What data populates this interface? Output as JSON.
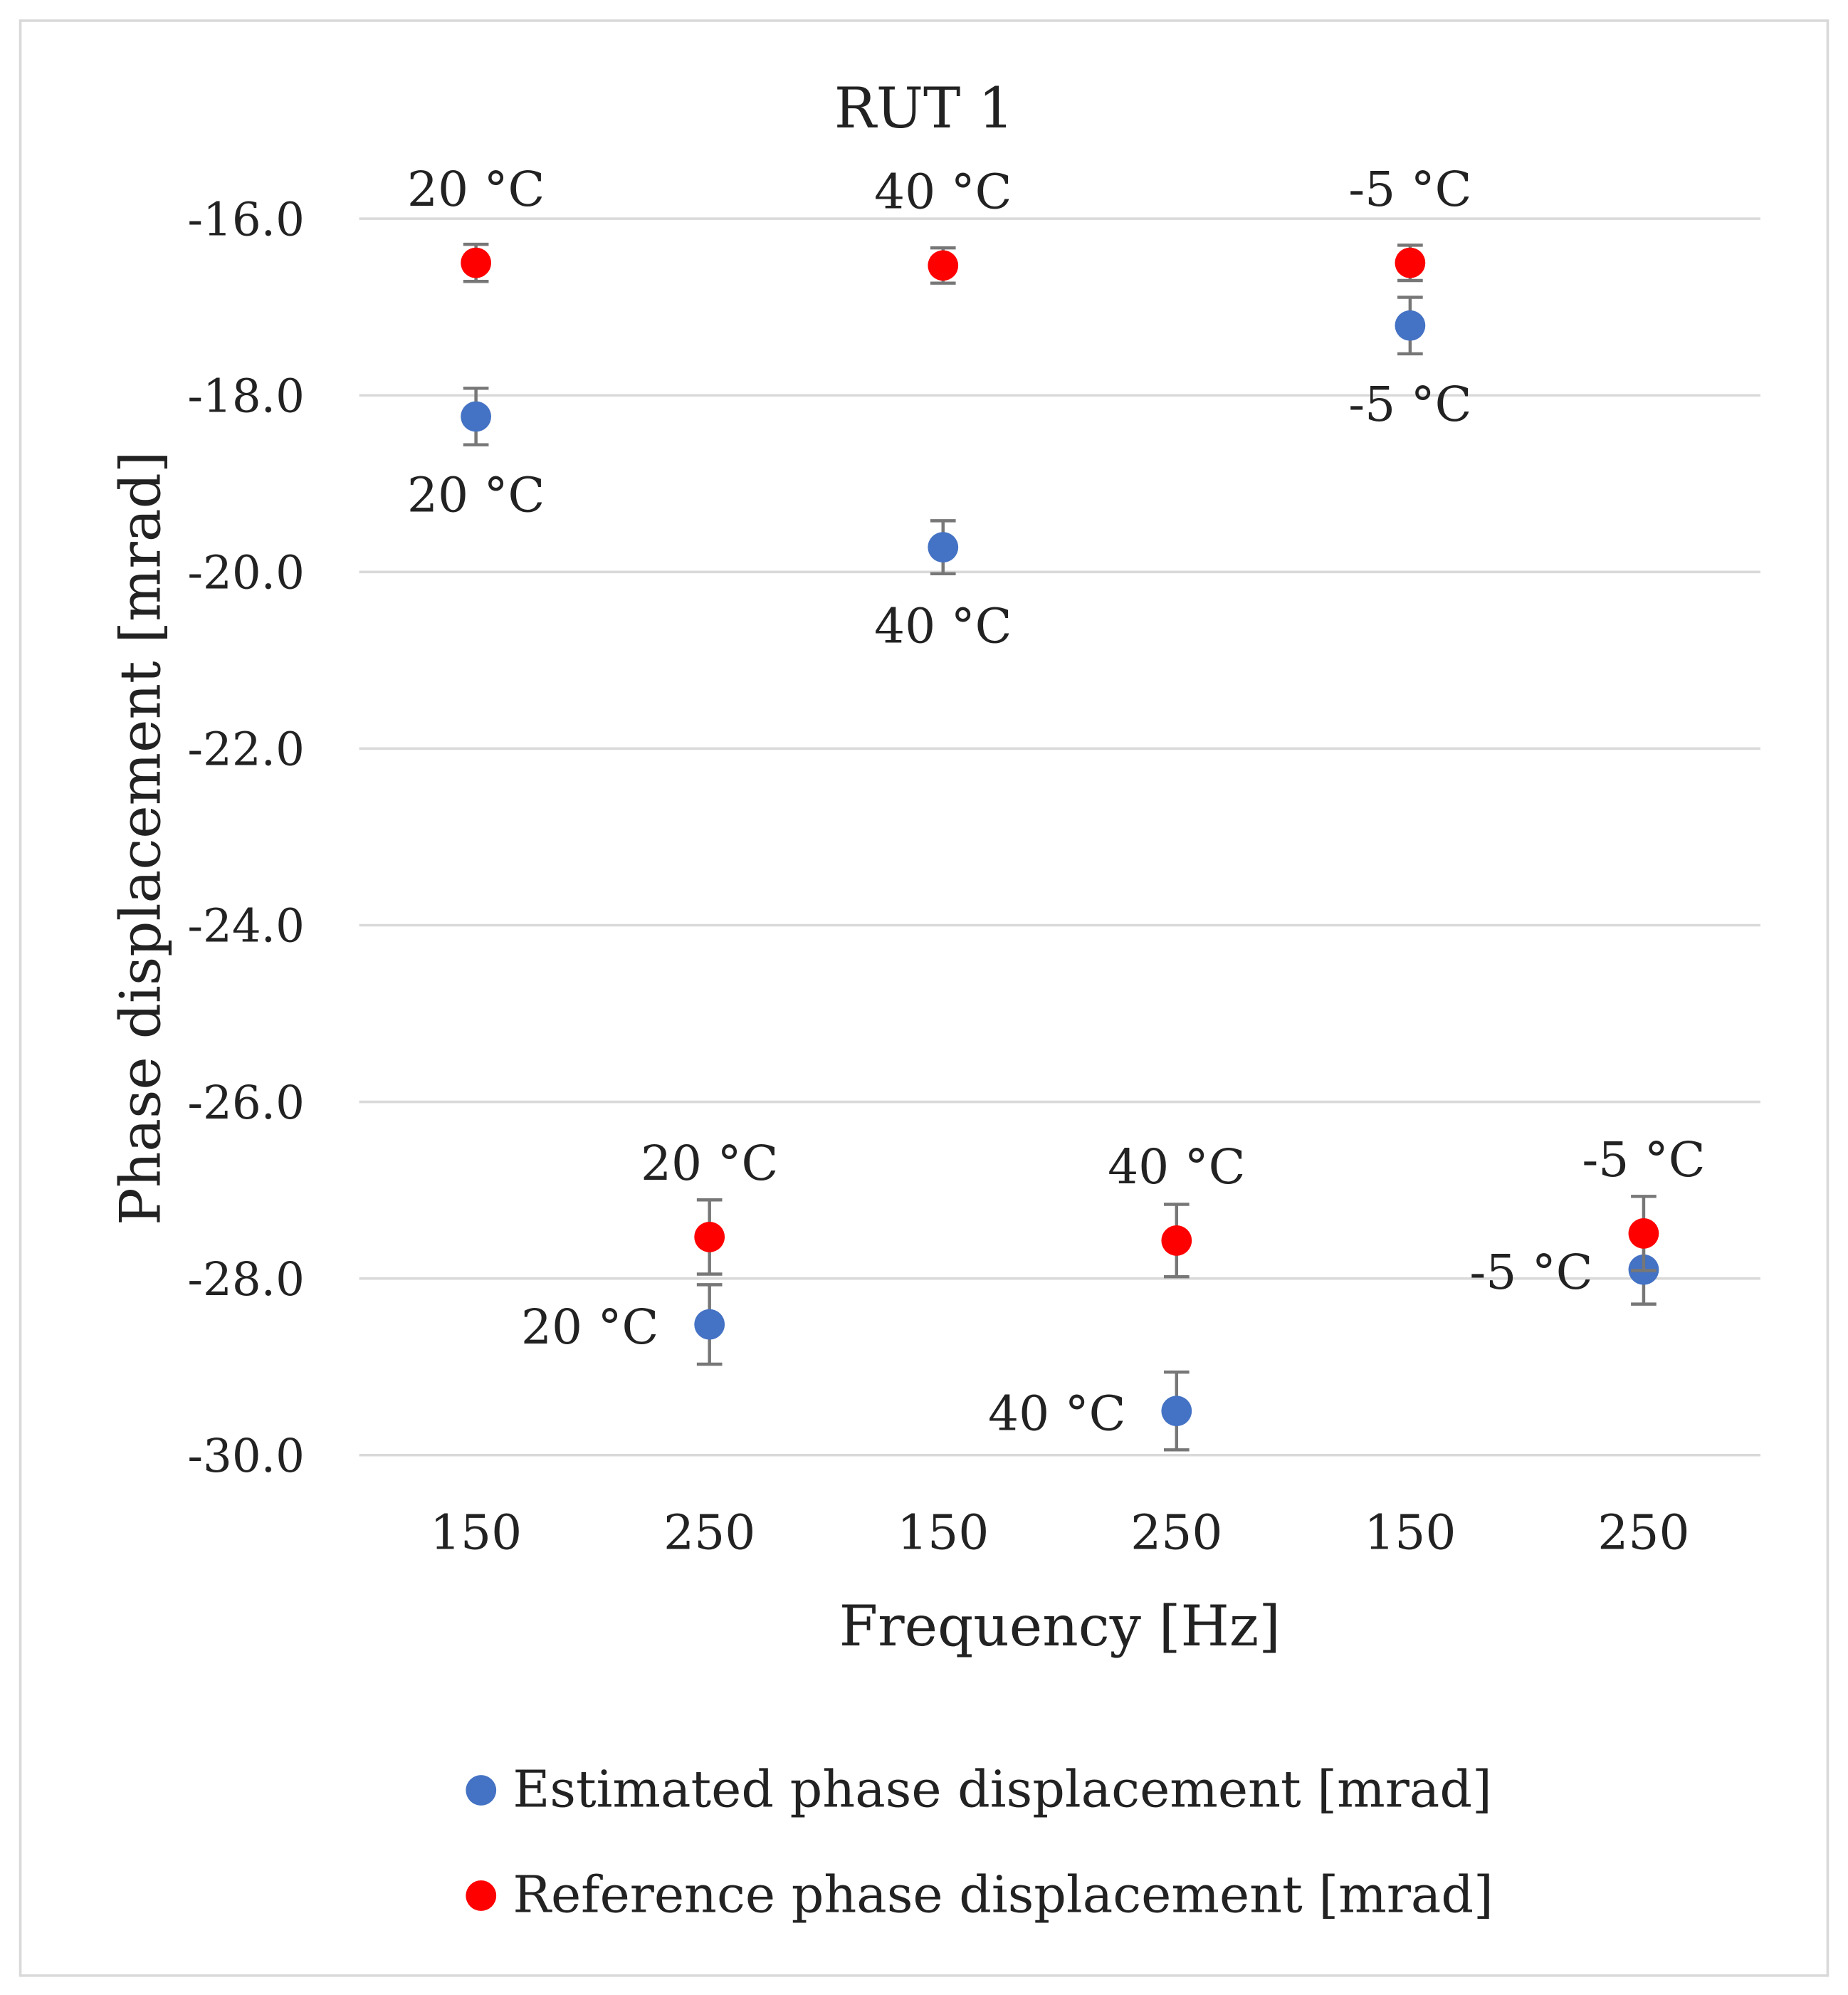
{
  "chart_data": {
    "type": "scatter",
    "title": "RUT 1",
    "xlabel": "Frequency [Hz]",
    "ylabel": "Phase displacement [mrad]",
    "ylim": [
      -30.0,
      -16.0
    ],
    "yticks": [
      "-16.0",
      "-18.0",
      "-20.0",
      "-22.0",
      "-24.0",
      "-26.0",
      "-28.0",
      "-30.0"
    ],
    "ytick_values": [
      -16,
      -18,
      -20,
      -22,
      -24,
      -26,
      -28,
      -30
    ],
    "categories": [
      "150",
      "250",
      "150",
      "250",
      "150",
      "250"
    ],
    "grid": true,
    "legend_position": "bottom",
    "series": [
      {
        "name": "Estimated phase displacement [mrad]",
        "color": "#4472c4",
        "values": [
          -18.24,
          -28.52,
          -19.72,
          -29.5,
          -17.21,
          -27.9
        ],
        "errors": [
          0.32,
          0.45,
          0.3,
          0.44,
          0.32,
          0.39
        ],
        "labels": [
          "20 °C",
          "20 °C",
          "40 °C",
          "40 °C",
          "-5 °C",
          "-5 °C"
        ],
        "label_placement": [
          "below",
          "left",
          "below",
          "left",
          "below",
          "left"
        ]
      },
      {
        "name": "Reference phase displacement [mrad]",
        "color": "#ff0000",
        "values": [
          -16.5,
          -27.53,
          -16.53,
          -27.57,
          -16.5,
          -27.49
        ],
        "errors": [
          0.21,
          0.42,
          0.2,
          0.41,
          0.2,
          0.42
        ],
        "labels": [
          "20 °C",
          "20 °C",
          "40 °C",
          "40 °C",
          "-5 °C",
          "-5 °C"
        ],
        "label_placement": [
          "above",
          "above",
          "above",
          "above",
          "above",
          "above"
        ]
      }
    ]
  }
}
